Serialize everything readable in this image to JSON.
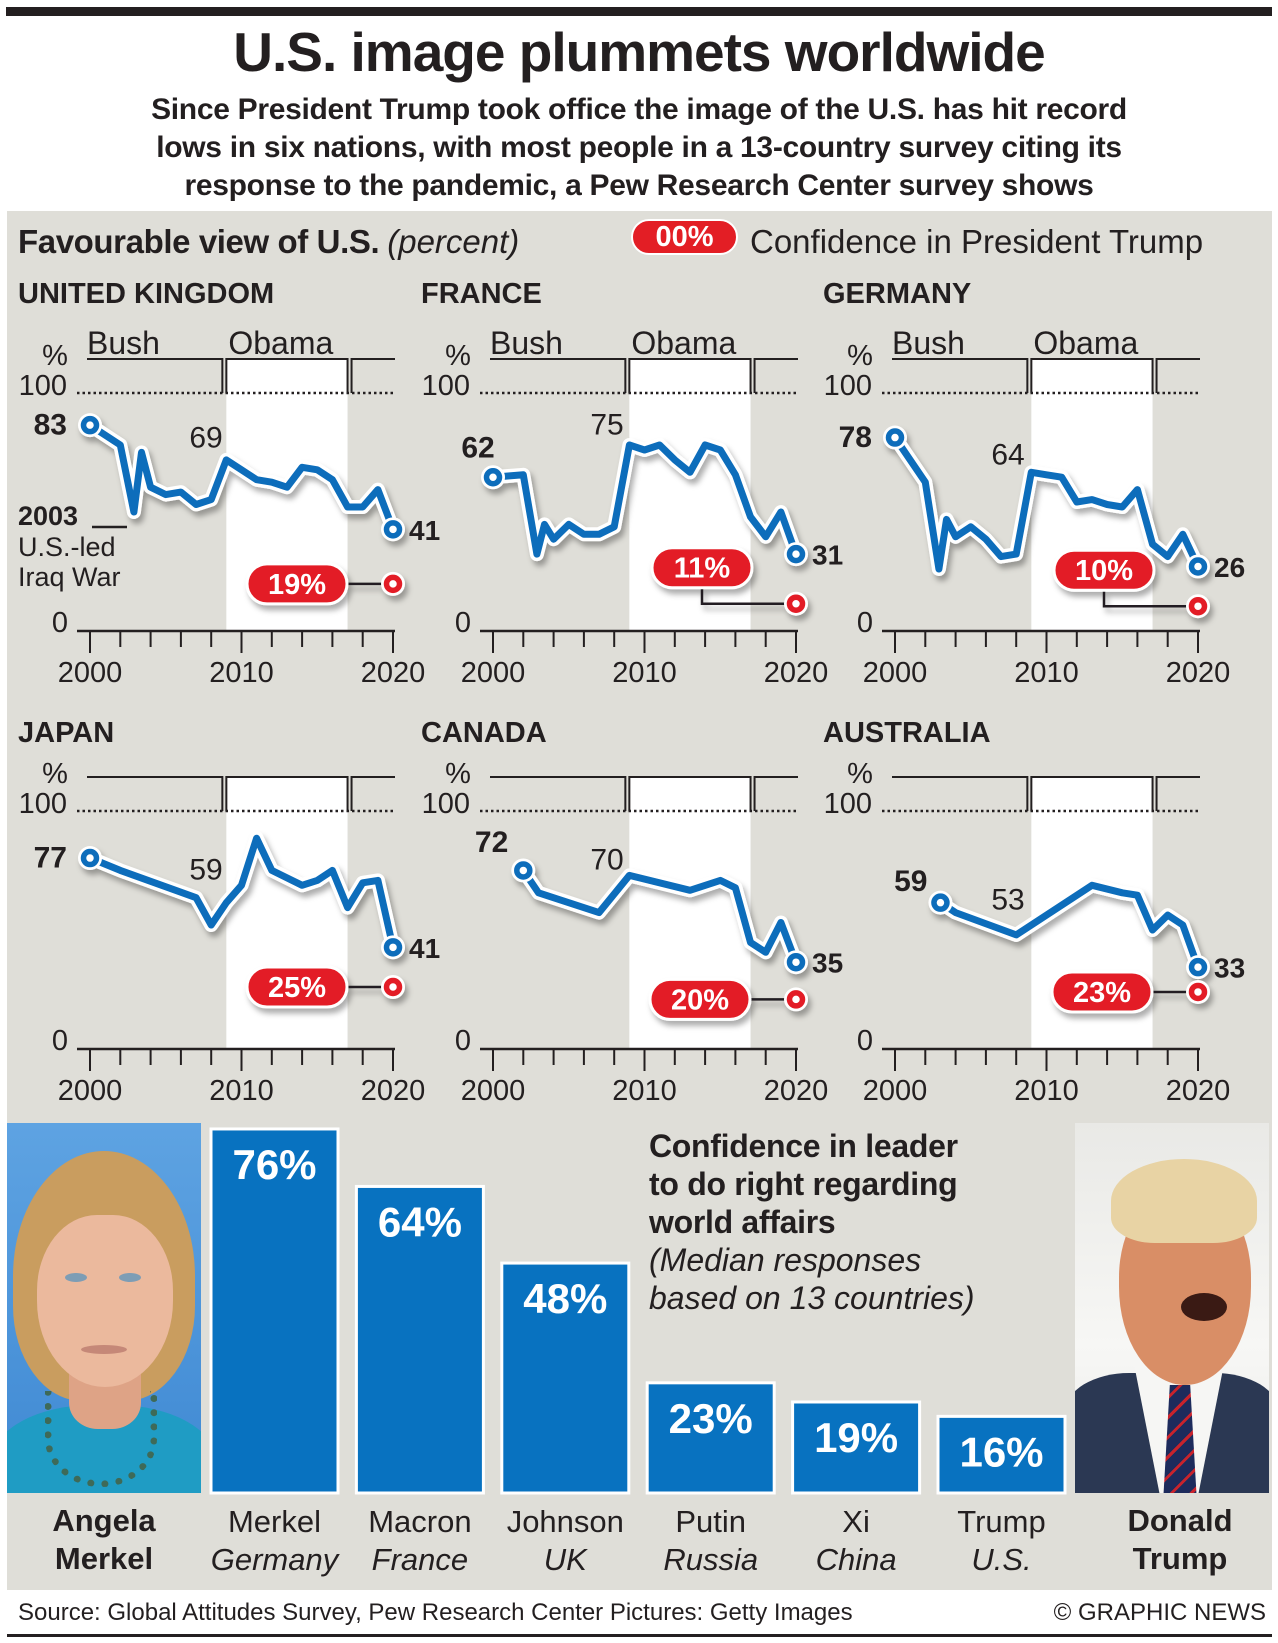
{
  "header": {
    "title": "U.S. image plummets worldwide",
    "subtitle_lines": [
      "Since President Trump took office the image of the U.S. has hit record",
      "lows in six nations, with most people in a 13-country survey citing its",
      "response to the pandemic, a Pew Research Center survey shows"
    ]
  },
  "legend": {
    "heading": "Favourable view of U.S.",
    "unit": "(percent)",
    "pill_sample": "00%",
    "pill_label": "Confidence in President Trump"
  },
  "colors": {
    "line": "#0b6dbb",
    "trump": "#e31e25",
    "bar": "#0872c0",
    "panel": "#dfded8",
    "ink": "#231f20"
  },
  "chart_data": [
    {
      "type": "line",
      "title": "UNITED KINGDOM",
      "xlim": [
        2000,
        2020
      ],
      "ylim": [
        0,
        100
      ],
      "minor_tick_step": 2,
      "ylabel": "%",
      "yticks": [
        "0",
        "100"
      ],
      "xticks": [
        "2000",
        "2010",
        "2020"
      ],
      "presidencies": [
        {
          "name": "Bush",
          "from": 2001,
          "to": 2009
        },
        {
          "name": "Obama",
          "from": 2009,
          "to": 2017
        }
      ],
      "show_presidency_labels": true,
      "series": [
        {
          "name": "Favourable view of U.S.",
          "points": [
            [
              2000,
              83
            ],
            [
              2002,
              75
            ],
            [
              2002.9,
              48
            ],
            [
              2003.4,
              72
            ],
            [
              2004,
              58
            ],
            [
              2005,
              55
            ],
            [
              2006,
              56
            ],
            [
              2007,
              51
            ],
            [
              2008,
              53
            ],
            [
              2009,
              69
            ],
            [
              2010,
              65
            ],
            [
              2011,
              61
            ],
            [
              2012,
              60
            ],
            [
              2013,
              58
            ],
            [
              2014,
              66
            ],
            [
              2015,
              65
            ],
            [
              2016,
              61
            ],
            [
              2017,
              50
            ],
            [
              2018,
              50
            ],
            [
              2019,
              57
            ],
            [
              2020,
              41
            ]
          ]
        }
      ],
      "annotations": {
        "start": "83",
        "mid": "69",
        "end": "41"
      },
      "trump_confidence": {
        "year": 2020,
        "value": 19,
        "label": "19%"
      },
      "note": {
        "title": "2003",
        "lines": [
          "U.S.-led",
          "Iraq War"
        ]
      }
    },
    {
      "type": "line",
      "title": "FRANCE",
      "xlim": [
        2000,
        2020
      ],
      "ylim": [
        0,
        100
      ],
      "minor_tick_step": 2,
      "ylabel": "%",
      "yticks": [
        "0",
        "100"
      ],
      "xticks": [
        "2000",
        "2010",
        "2020"
      ],
      "presidencies": [
        {
          "name": "Bush",
          "from": 2001,
          "to": 2009
        },
        {
          "name": "Obama",
          "from": 2009,
          "to": 2017
        }
      ],
      "show_presidency_labels": true,
      "series": [
        {
          "name": "Favourable view of U.S.",
          "points": [
            [
              2000,
              62
            ],
            [
              2002,
              63
            ],
            [
              2002.9,
              31
            ],
            [
              2003.4,
              43
            ],
            [
              2004,
              37
            ],
            [
              2005,
              43
            ],
            [
              2006,
              39
            ],
            [
              2007,
              39
            ],
            [
              2008,
              42
            ],
            [
              2009,
              75
            ],
            [
              2010,
              73
            ],
            [
              2011,
              75
            ],
            [
              2012,
              69
            ],
            [
              2013,
              64
            ],
            [
              2014,
              75
            ],
            [
              2015,
              73
            ],
            [
              2016,
              63
            ],
            [
              2017,
              46
            ],
            [
              2018,
              38
            ],
            [
              2019,
              48
            ],
            [
              2020,
              31
            ]
          ]
        }
      ],
      "annotations": {
        "start": "62",
        "mid": "75",
        "end": "31"
      },
      "trump_confidence": {
        "year": 2020,
        "value": 11,
        "label": "11%"
      }
    },
    {
      "type": "line",
      "title": "GERMANY",
      "xlim": [
        2000,
        2020
      ],
      "ylim": [
        0,
        100
      ],
      "minor_tick_step": 2,
      "ylabel": "%",
      "yticks": [
        "0",
        "100"
      ],
      "xticks": [
        "2000",
        "2010",
        "2020"
      ],
      "presidencies": [
        {
          "name": "Bush",
          "from": 2001,
          "to": 2009
        },
        {
          "name": "Obama",
          "from": 2009,
          "to": 2017
        }
      ],
      "show_presidency_labels": true,
      "series": [
        {
          "name": "Favourable view of U.S.",
          "points": [
            [
              2000,
              78
            ],
            [
              2002,
              60
            ],
            [
              2002.9,
              25
            ],
            [
              2003.4,
              45
            ],
            [
              2004,
              38
            ],
            [
              2005,
              42
            ],
            [
              2006,
              37
            ],
            [
              2007,
              30
            ],
            [
              2008,
              31
            ],
            [
              2009,
              64
            ],
            [
              2010,
              63
            ],
            [
              2011,
              62
            ],
            [
              2012,
              52
            ],
            [
              2013,
              53
            ],
            [
              2014,
              51
            ],
            [
              2015,
              50
            ],
            [
              2016,
              57
            ],
            [
              2017,
              35
            ],
            [
              2018,
              30
            ],
            [
              2019,
              39
            ],
            [
              2020,
              26
            ]
          ]
        }
      ],
      "annotations": {
        "start": "78",
        "mid": "64",
        "end": "26"
      },
      "trump_confidence": {
        "year": 2020,
        "value": 10,
        "label": "10%"
      }
    },
    {
      "type": "line",
      "title": "JAPAN",
      "xlim": [
        2000,
        2020
      ],
      "ylim": [
        0,
        100
      ],
      "minor_tick_step": 2,
      "ylabel": "%",
      "yticks": [
        "0",
        "100"
      ],
      "xticks": [
        "2000",
        "2010",
        "2020"
      ],
      "presidencies": [
        {
          "name": "Bush",
          "from": 2001,
          "to": 2009
        },
        {
          "name": "Obama",
          "from": 2009,
          "to": 2017
        }
      ],
      "show_presidency_labels": false,
      "series": [
        {
          "name": "Favourable view of U.S.",
          "points": [
            [
              2000,
              77
            ],
            [
              2002,
              72
            ],
            [
              2007,
              61
            ],
            [
              2008,
              50
            ],
            [
              2009,
              59
            ],
            [
              2010,
              66
            ],
            [
              2011,
              85
            ],
            [
              2012,
              72
            ],
            [
              2013,
              69
            ],
            [
              2014,
              66
            ],
            [
              2015,
              68
            ],
            [
              2016,
              72
            ],
            [
              2017,
              57
            ],
            [
              2018,
              67
            ],
            [
              2019,
              68
            ],
            [
              2020,
              41
            ]
          ]
        }
      ],
      "annotations": {
        "start": "77",
        "mid": "59",
        "end": "41"
      },
      "trump_confidence": {
        "year": 2020,
        "value": 25,
        "label": "25%"
      }
    },
    {
      "type": "line",
      "title": "CANADA",
      "xlim": [
        2000,
        2020
      ],
      "ylim": [
        0,
        100
      ],
      "minor_tick_step": 2,
      "ylabel": "%",
      "yticks": [
        "0",
        "100"
      ],
      "xticks": [
        "2000",
        "2010",
        "2020"
      ],
      "presidencies": [
        {
          "name": "Bush",
          "from": 2001,
          "to": 2009
        },
        {
          "name": "Obama",
          "from": 2009,
          "to": 2017
        }
      ],
      "show_presidency_labels": false,
      "series": [
        {
          "name": "Favourable view of U.S.",
          "points": [
            [
              2002,
              72
            ],
            [
              2003,
              63
            ],
            [
              2007,
              55
            ],
            [
              2009,
              70
            ],
            [
              2013,
              64
            ],
            [
              2015,
              68
            ],
            [
              2016,
              65
            ],
            [
              2017,
              43
            ],
            [
              2018,
              39
            ],
            [
              2019,
              51
            ],
            [
              2020,
              35
            ]
          ]
        }
      ],
      "annotations": {
        "start": "72",
        "mid": "70",
        "end": "35"
      },
      "trump_confidence": {
        "year": 2020,
        "value": 20,
        "label": "20%"
      }
    },
    {
      "type": "line",
      "title": "AUSTRALIA",
      "xlim": [
        2000,
        2020
      ],
      "ylim": [
        0,
        100
      ],
      "minor_tick_step": 2,
      "ylabel": "%",
      "yticks": [
        "0",
        "100"
      ],
      "xticks": [
        "2000",
        "2010",
        "2020"
      ],
      "presidencies": [
        {
          "name": "Bush",
          "from": 2001,
          "to": 2009
        },
        {
          "name": "Obama",
          "from": 2009,
          "to": 2017
        }
      ],
      "show_presidency_labels": false,
      "series": [
        {
          "name": "Favourable view of U.S.",
          "points": [
            [
              2003,
              59
            ],
            [
              2004,
              55
            ],
            [
              2008,
              46
            ],
            [
              2013,
              66
            ],
            [
              2015,
              63
            ],
            [
              2016,
              62
            ],
            [
              2017,
              48
            ],
            [
              2018,
              54
            ],
            [
              2019,
              50
            ],
            [
              2020,
              33
            ]
          ]
        }
      ],
      "annotations": {
        "start": "59",
        "mid": "53",
        "end": "33"
      },
      "trump_confidence": {
        "year": 2020,
        "value": 23,
        "label": "23%"
      }
    },
    {
      "type": "bar",
      "title_lines": [
        "Confidence in leader",
        "to do right regarding",
        "world affairs"
      ],
      "subtitle_lines": [
        "(Median responses",
        "based on 13 countries)"
      ],
      "categories": [
        "Merkel",
        "Macron",
        "Johnson",
        "Putin",
        "Xi",
        "Trump"
      ],
      "countries": [
        "Germany",
        "France",
        "UK",
        "Russia",
        "China",
        "U.S."
      ],
      "values": [
        76,
        64,
        48,
        23,
        19,
        16
      ],
      "value_labels": [
        "76%",
        "64%",
        "48%",
        "23%",
        "19%",
        "16%"
      ],
      "ylim": [
        0,
        100
      ]
    }
  ],
  "photos": {
    "left": {
      "subject": "Angela Merkel",
      "caption_lines": [
        "Angela",
        "Merkel"
      ]
    },
    "right": {
      "subject": "Donald Trump",
      "caption_lines": [
        "Donald",
        "Trump"
      ]
    }
  },
  "footer": {
    "source": "Source: Global Attitudes Survey, Pew Research Center  Pictures: Getty Images",
    "credit": "© GRAPHIC NEWS"
  }
}
